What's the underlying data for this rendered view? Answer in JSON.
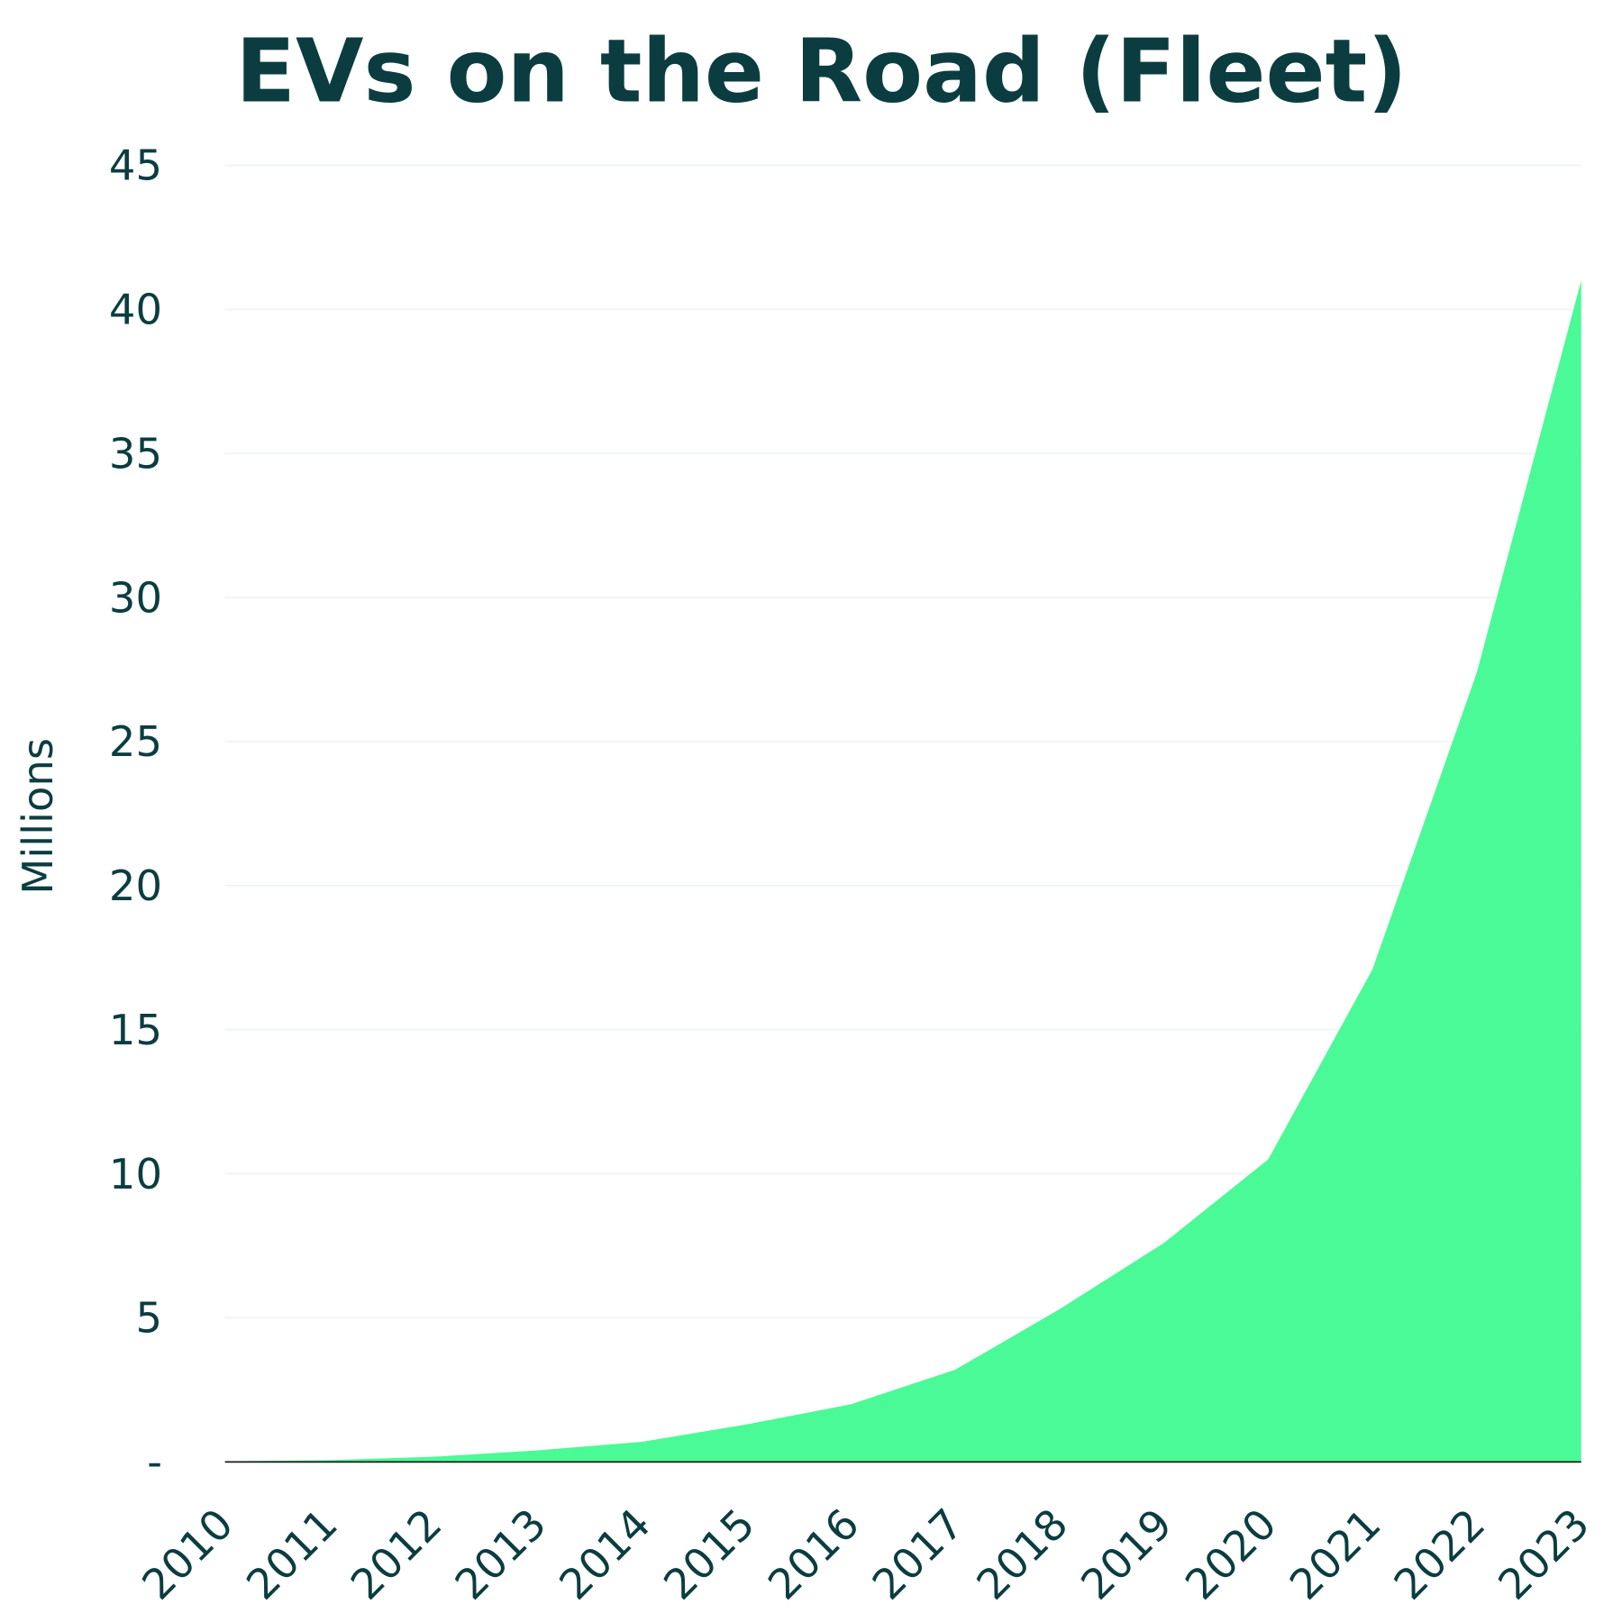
{
  "chart_data": {
    "type": "area",
    "title": "EVs on the Road (Fleet)",
    "xlabel": "",
    "ylabel": "Millions",
    "categories": [
      "2010",
      "2011",
      "2012",
      "2013",
      "2014",
      "2015",
      "2016",
      "2017",
      "2018",
      "2019",
      "2020",
      "2021",
      "2022",
      "2023"
    ],
    "values": [
      0.02,
      0.06,
      0.18,
      0.4,
      0.7,
      1.3,
      2.0,
      3.2,
      5.3,
      7.6,
      10.5,
      17.1,
      27.4,
      41.0
    ],
    "ylim": [
      0,
      45
    ],
    "yticks": [
      0,
      5,
      10,
      15,
      20,
      25,
      30,
      35,
      40,
      45
    ],
    "ytick_labels": [
      "-",
      "5",
      "10",
      "15",
      "20",
      "25",
      "30",
      "35",
      "40",
      "45"
    ],
    "grid": true,
    "colors": {
      "fill": "#4afa96",
      "text": "#0b3d40",
      "grid": "#eef4f2",
      "axis": "#1a1a1a"
    }
  }
}
